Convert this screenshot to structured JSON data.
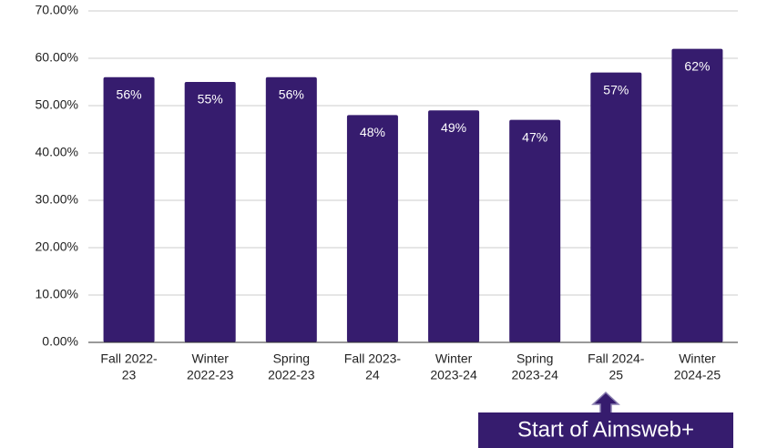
{
  "chart_data": {
    "type": "bar",
    "categories": [
      [
        "Fall 2022-",
        "23"
      ],
      [
        "Winter",
        "2022-23"
      ],
      [
        "Spring",
        "2022-23"
      ],
      [
        "Fall 2023-",
        "24"
      ],
      [
        "Winter",
        "2023-24"
      ],
      [
        "Spring",
        "2023-24"
      ],
      [
        "Fall 2024-",
        "25"
      ],
      [
        "Winter",
        "2024-25"
      ]
    ],
    "values": [
      56,
      55,
      56,
      48,
      49,
      47,
      57,
      62
    ],
    "value_labels": [
      "56%",
      "55%",
      "56%",
      "48%",
      "49%",
      "47%",
      "57%",
      "62%"
    ],
    "color": "#361c6e",
    "ylim": [
      0,
      70
    ],
    "yticks": [
      {
        "value": 0,
        "label": "0.00%"
      },
      {
        "value": 10,
        "label": "10.00%"
      },
      {
        "value": 20,
        "label": "20.00%"
      },
      {
        "value": 30,
        "label": "30.00%"
      },
      {
        "value": 40,
        "label": "40.00%"
      },
      {
        "value": 50,
        "label": "50.00%"
      },
      {
        "value": 60,
        "label": "60.00%"
      },
      {
        "value": 70,
        "label": "70.00%"
      }
    ],
    "grid": true,
    "annotation": "Start of Aimsweb+"
  }
}
